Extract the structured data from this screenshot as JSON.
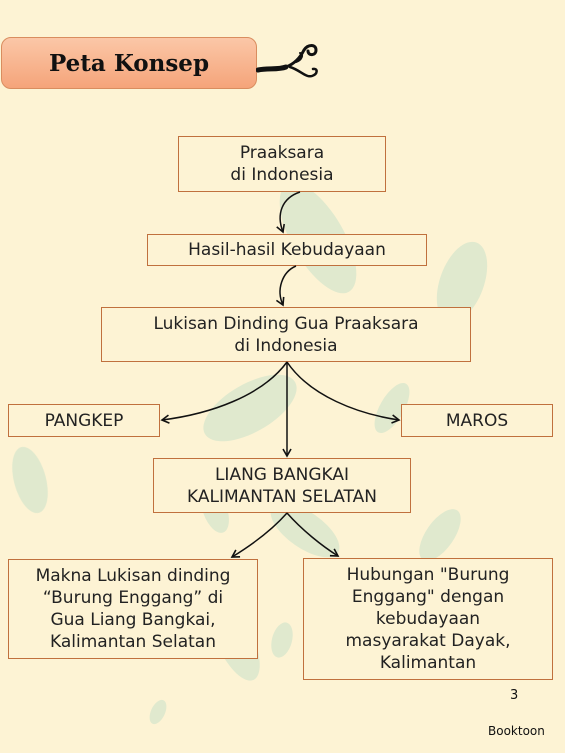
{
  "slide": {
    "title": "Peta Konsep",
    "page_number": "3",
    "brand": "Booktoon"
  },
  "concept_map": {
    "root": "Praaksara\ndi Indonesia",
    "level1": "Hasil-hasil Kebudayaan",
    "level2": "Lukisan Dinding Gua Praaksara\ndi Indonesia",
    "left_site": "PANGKEP",
    "right_site": "MAROS",
    "center_site": "LIANG BANGKAI\nKALIMANTAN SELATAN",
    "left_leaf": "Makna Lukisan dinding\n“Burung Enggang” di\nGua Liang Bangkai,\nKalimantan Selatan",
    "right_leaf": "Hubungan \"Burung\nEnggang\" dengan\nkebudayaan\nmasyarakat Dayak,\nKalimantan"
  },
  "colors": {
    "background": "#fdf3d4",
    "title_fill": "#f5a47a",
    "node_border": "#c0703d",
    "leaf_green": "#cfe3c4"
  }
}
